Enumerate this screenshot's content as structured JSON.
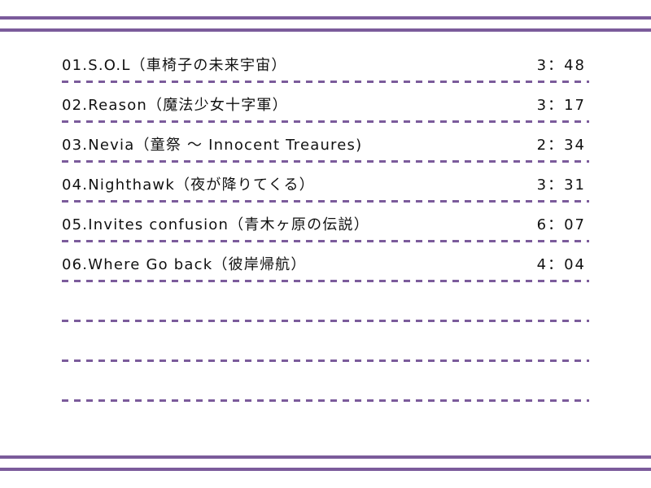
{
  "accent_color": "#7b5b9b",
  "tracks": [
    {
      "title": "01.S.O.L（車椅子の未来宇宙）",
      "time": "3：48"
    },
    {
      "title": "02.Reason（魔法少女十字軍）",
      "time": "3：17"
    },
    {
      "title": "03.Nevia（童祭 ～ Innocent Treaures)",
      "time": "2：34"
    },
    {
      "title": "04.Nighthawk（夜が降りてくる）",
      "time": "3：31"
    },
    {
      "title": "05.Invites confusion（青木ヶ原の伝説）",
      "time": "6：07"
    },
    {
      "title": "06.Where Go back（彼岸帰航）",
      "time": "4：04"
    },
    {
      "title": "",
      "time": ""
    },
    {
      "title": "",
      "time": ""
    },
    {
      "title": "",
      "time": ""
    }
  ]
}
